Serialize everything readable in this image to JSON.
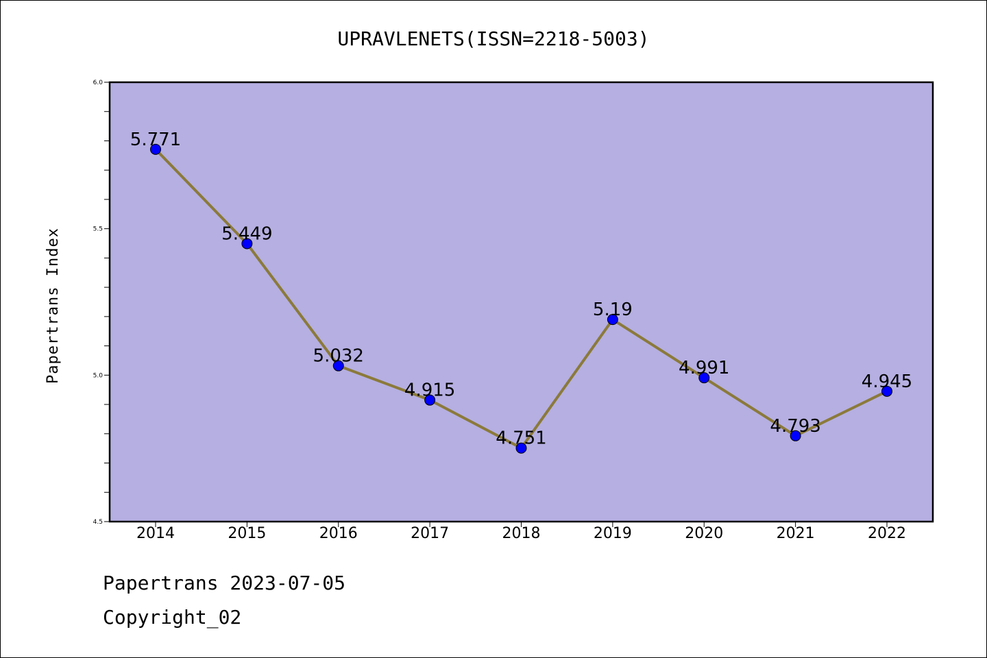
{
  "chart_data": {
    "type": "line",
    "title": "UPRAVLENETS(ISSN=2218-5003)",
    "xlabel": "",
    "ylabel": "Papertrans Index",
    "categories": [
      "2014",
      "2015",
      "2016",
      "2017",
      "2018",
      "2019",
      "2020",
      "2021",
      "2022"
    ],
    "series": [
      {
        "values": [
          5.771,
          5.449,
          5.032,
          4.915,
          4.751,
          5.19,
          4.991,
          4.793,
          4.945
        ],
        "labels": [
          "5.771",
          "5.449",
          "5.032",
          "4.915",
          "4.751",
          "5.19",
          "4.991",
          "4.793",
          "4.945"
        ]
      }
    ],
    "ylim": [
      4.5,
      6.0
    ],
    "yticks": [
      "4.5",
      "5.0",
      "5.5",
      "6.0"
    ],
    "grid": false,
    "colors": {
      "plot_background": "#b5afe2",
      "line": "#8b7a3a",
      "marker": "#0000ff"
    }
  },
  "footer": {
    "line1": "Papertrans 2023-07-05",
    "line2": "Copyright_02"
  }
}
